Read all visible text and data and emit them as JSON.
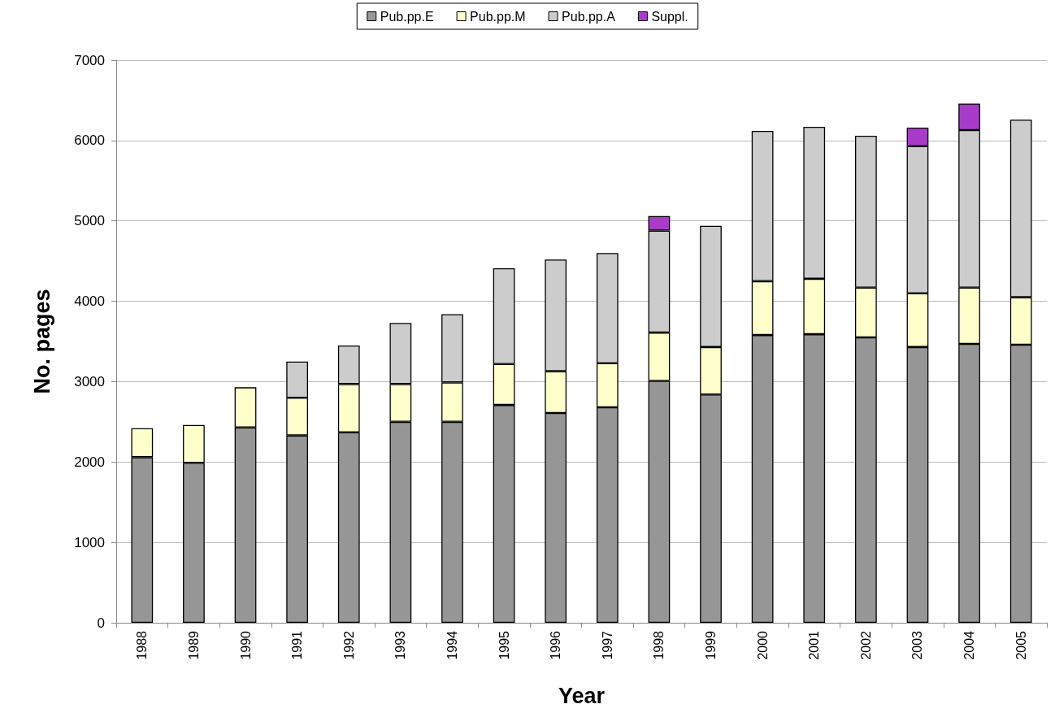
{
  "chart_data": {
    "type": "bar",
    "stacked": true,
    "xlabel": "Year",
    "ylabel": "No. pages",
    "categories": [
      "1988",
      "1989",
      "1990",
      "1991",
      "1992",
      "1993",
      "1994",
      "1995",
      "1996",
      "1997",
      "1998",
      "1999",
      "2000",
      "2001",
      "2002",
      "2003",
      "2004",
      "2005"
    ],
    "series": [
      {
        "name": "Pub.pp.E",
        "color": "#969696",
        "values": [
          2060,
          1990,
          2430,
          2330,
          2370,
          2500,
          2500,
          2710,
          2610,
          2680,
          3010,
          2840,
          3580,
          3590,
          3550,
          3430,
          3470,
          3460
        ]
      },
      {
        "name": "Pub.pp.M",
        "color": "#ffffcc",
        "values": [
          360,
          470,
          500,
          470,
          600,
          470,
          490,
          510,
          520,
          550,
          600,
          590,
          670,
          690,
          620,
          670,
          700,
          590
        ]
      },
      {
        "name": "Pub.pp.A",
        "color": "#cccccc",
        "values": [
          null,
          null,
          null,
          450,
          480,
          760,
          850,
          1190,
          1390,
          1370,
          1270,
          1510,
          1870,
          1890,
          1890,
          1830,
          1960,
          2210
        ]
      },
      {
        "name": "Suppl.",
        "color": "#a83cc8",
        "values": [
          null,
          null,
          null,
          null,
          null,
          null,
          null,
          null,
          null,
          null,
          180,
          null,
          null,
          null,
          null,
          230,
          330,
          null
        ]
      }
    ],
    "ylim": [
      0,
      7000
    ],
    "yticks": [
      0,
      1000,
      2000,
      3000,
      4000,
      5000,
      6000,
      7000
    ],
    "grid": "y",
    "legend": "top"
  }
}
